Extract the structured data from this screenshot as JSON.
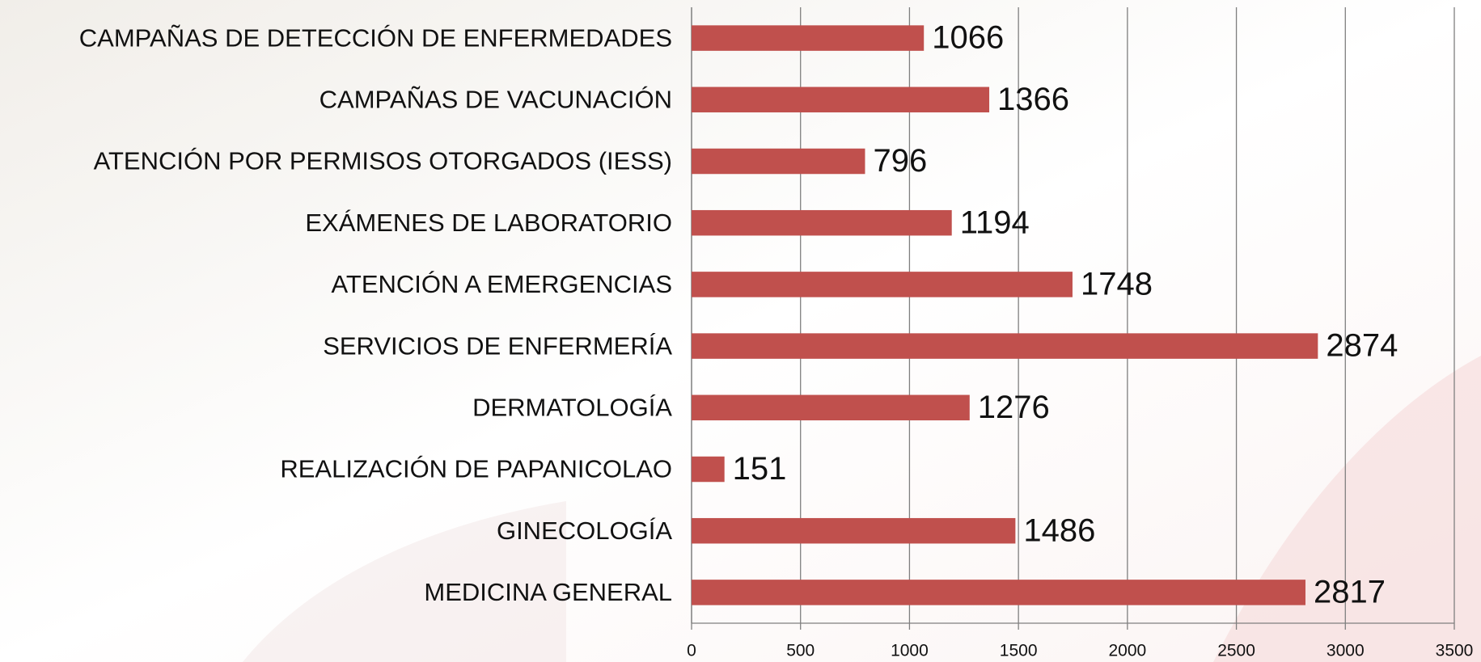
{
  "chart_data": {
    "type": "barh",
    "categories": [
      "CAMPAÑAS DE DETECCIÓN DE ENFERMEDADES",
      "CAMPAÑAS DE VACUNACIÓN",
      "ATENCIÓN POR PERMISOS OTORGADOS (IESS)",
      "EXÁMENES DE LABORATORIO",
      "ATENCIÓN A EMERGENCIAS",
      "SERVICIOS DE ENFERMERÍA",
      "DERMATOLOGÍA",
      "REALIZACIÓN DE PAPANICOLAO",
      "GINECOLOGÍA",
      "MEDICINA GENERAL"
    ],
    "values": [
      1066,
      1366,
      796,
      1194,
      1748,
      2874,
      1276,
      151,
      1486,
      2817
    ],
    "color": "#c0504d",
    "xlim": [
      0,
      3500
    ],
    "xticks": [
      0,
      500,
      1000,
      1500,
      2000,
      2500,
      3000,
      3500
    ],
    "grid": true
  }
}
